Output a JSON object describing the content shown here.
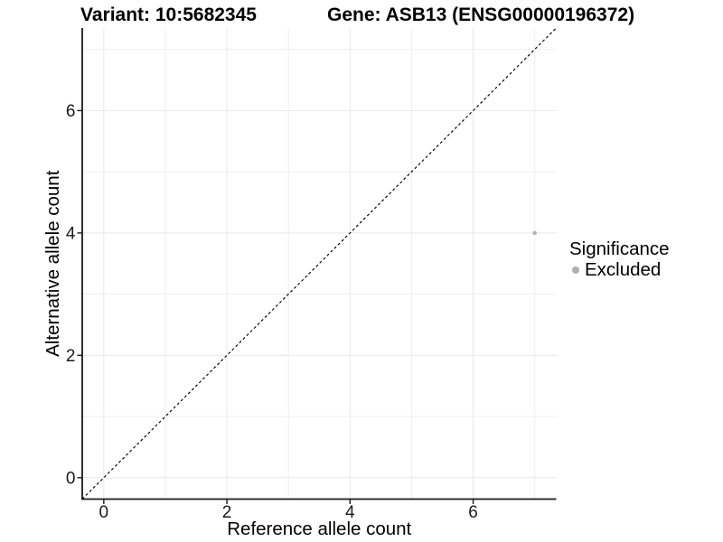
{
  "chart_data": {
    "type": "scatter",
    "titles": {
      "left": "Variant: 10:5682345",
      "right": "Gene: ASB13 (ENSG00000196372)"
    },
    "xlabel": "Reference allele count",
    "ylabel": "Alternative allele count",
    "xlim": [
      -0.35,
      7.35
    ],
    "ylim": [
      -0.35,
      7.35
    ],
    "xticks": [
      0,
      2,
      4,
      6
    ],
    "yticks": [
      0,
      2,
      4,
      6
    ],
    "xticks_minor": [
      1,
      3,
      5,
      7
    ],
    "yticks_minor": [
      1,
      3,
      5,
      7
    ],
    "grid": "major and minor gridlines on white panel",
    "identity_line": {
      "style": "dashed",
      "color": "#000000",
      "from": -0.35,
      "to": 7.35
    },
    "series": [
      {
        "name": "Excluded",
        "color": "#b0b0b0",
        "points": [
          {
            "x": 7,
            "y": 4
          }
        ]
      }
    ],
    "legend": {
      "title": "Significance",
      "position": "right",
      "entries": [
        {
          "label": "Excluded",
          "color": "#b0b0b0"
        }
      ]
    }
  },
  "colors": {
    "background": "#ffffff",
    "grid_major": "#e8e8e8",
    "grid_minor": "#efefef",
    "axis_line": "#1a1a1a",
    "tick_text": "#1a1a1a",
    "point": "#b0b0b0"
  }
}
